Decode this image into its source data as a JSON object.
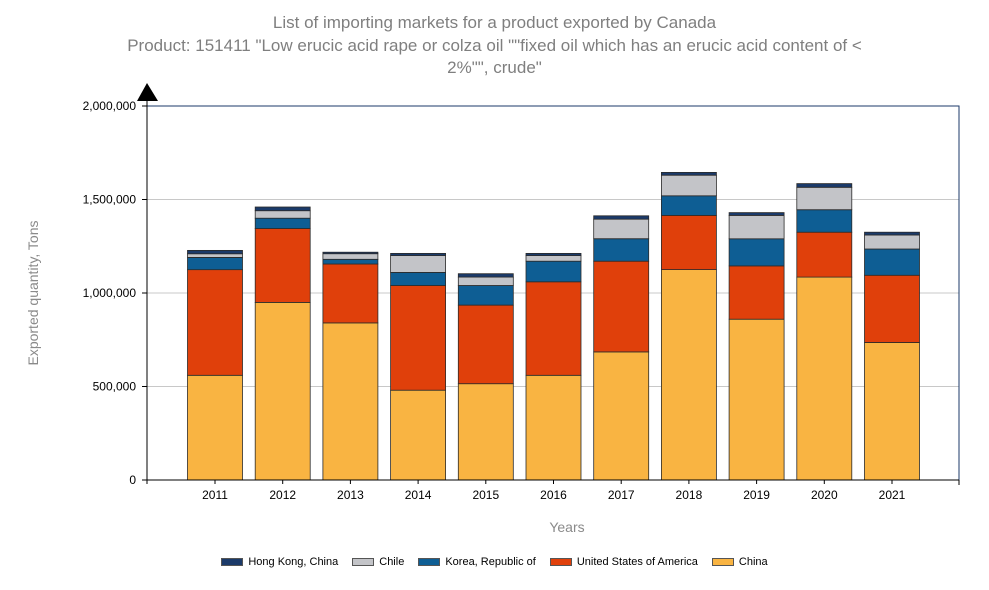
{
  "chart_data": {
    "type": "bar",
    "stacked": true,
    "title": "List of importing markets for a product exported by Canada",
    "subtitle_line1": "Product: 151411 \"Low erucic acid rape or colza oil \"\"fixed oil which has an erucic acid content of <",
    "subtitle_line2": "2%\"\", crude\"",
    "xlabel": "Years",
    "ylabel": "Exported quantity, Tons",
    "ylim": [
      0,
      2000000
    ],
    "yticks": [
      0,
      500000,
      1000000,
      1500000,
      2000000
    ],
    "ytick_labels": [
      "0",
      "500,000",
      "1,000,000",
      "1,500,000",
      "2,000,000"
    ],
    "categories": [
      "2011",
      "2012",
      "2013",
      "2014",
      "2015",
      "2016",
      "2017",
      "2018",
      "2019",
      "2020",
      "2021"
    ],
    "series": [
      {
        "name": "China",
        "color": "#f9b442",
        "values": [
          560000,
          950000,
          840000,
          480000,
          515000,
          560000,
          685000,
          1125000,
          860000,
          1085000,
          735000
        ]
      },
      {
        "name": "United States of America",
        "color": "#e0400b",
        "values": [
          565000,
          395000,
          315000,
          560000,
          420000,
          500000,
          485000,
          290000,
          285000,
          240000,
          360000
        ]
      },
      {
        "name": "Korea, Republic of",
        "color": "#0e5e94",
        "values": [
          65000,
          55000,
          25000,
          70000,
          105000,
          110000,
          120000,
          105000,
          145000,
          120000,
          140000
        ]
      },
      {
        "name": "Chile",
        "color": "#c3c4c8",
        "values": [
          20000,
          40000,
          30000,
          90000,
          45000,
          30000,
          105000,
          110000,
          125000,
          120000,
          75000
        ]
      },
      {
        "name": "Hong Kong, China",
        "color": "#1b3a69",
        "values": [
          18000,
          20000,
          8000,
          12000,
          18000,
          12000,
          18000,
          15000,
          15000,
          20000,
          15000
        ]
      }
    ],
    "legend_order": [
      "Hong Kong, China",
      "Chile",
      "Korea, Republic of",
      "United States of America",
      "China"
    ],
    "legend_position": "bottom"
  }
}
